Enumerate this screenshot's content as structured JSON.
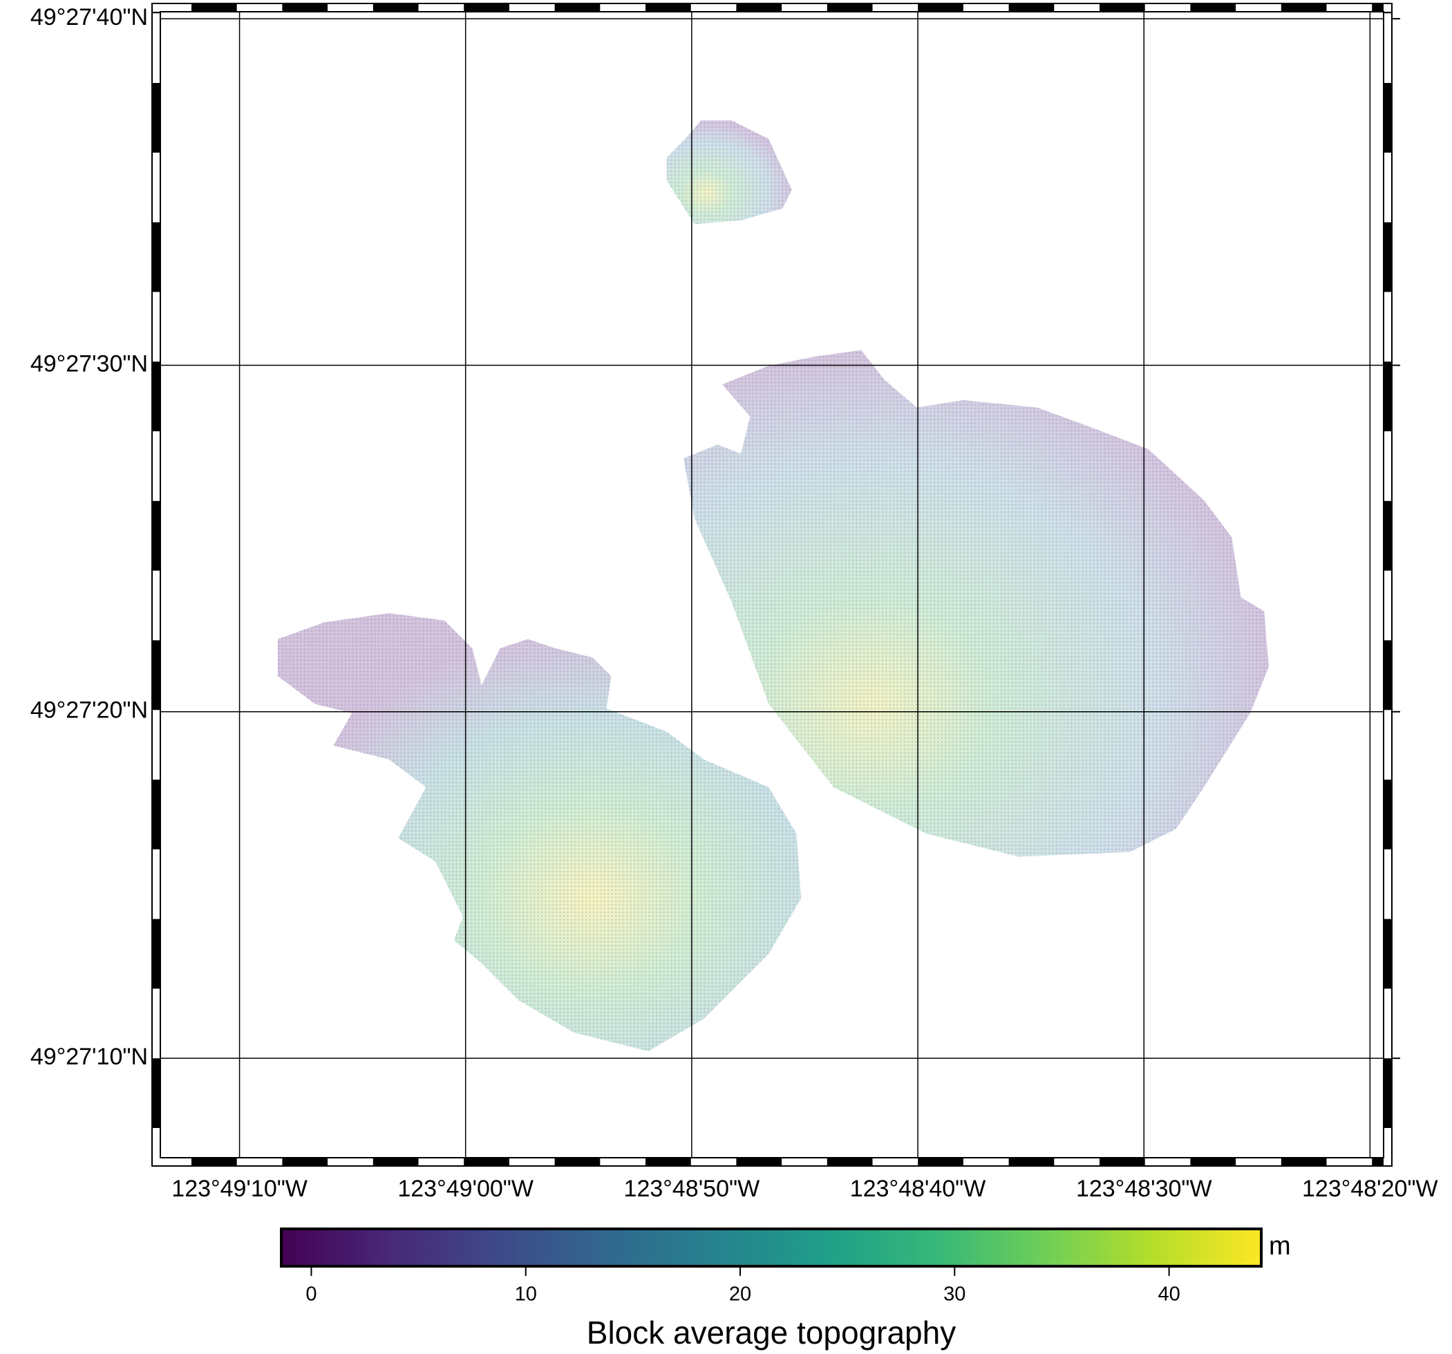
{
  "chart_data": {
    "type": "map",
    "xlim": [
      -123.820417,
      -123.805389
    ],
    "ylim": [
      49.451981,
      49.461167
    ],
    "xticks": [
      {
        "value": -123.819444,
        "label": "123°49'10\"W"
      },
      {
        "value": -123.816667,
        "label": "123°49'00\"W"
      },
      {
        "value": -123.813889,
        "label": "123°48'50\"W"
      },
      {
        "value": -123.811111,
        "label": "123°48'40\"W"
      },
      {
        "value": -123.808333,
        "label": "123°48'30\"W"
      },
      {
        "value": -123.805556,
        "label": "123°48'20\"W"
      }
    ],
    "yticks": [
      {
        "value": 49.452778,
        "label": "49°27'10\"N"
      },
      {
        "value": 49.455556,
        "label": "49°27'20\"N"
      },
      {
        "value": 49.458333,
        "label": "49°27'30\"N"
      },
      {
        "value": 49.461111,
        "label": "49°27'40\"N"
      }
    ],
    "grid": true,
    "colorbar": {
      "label": "Block average topography",
      "unit": "m",
      "colormap": "viridis",
      "lim": [
        -1.4,
        44.3
      ],
      "ticks": [
        0,
        10,
        20,
        30,
        40
      ]
    }
  }
}
